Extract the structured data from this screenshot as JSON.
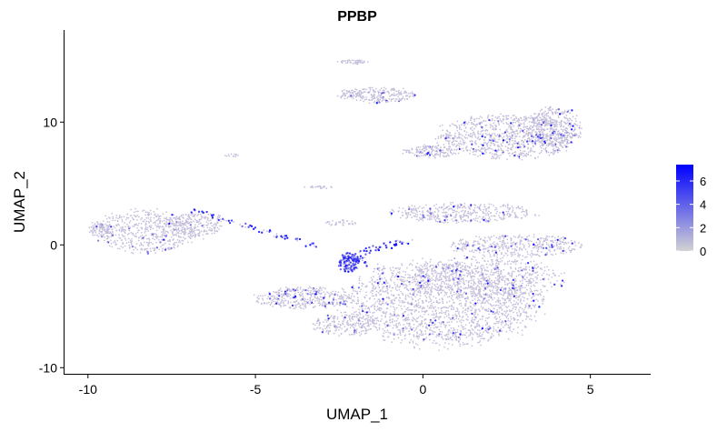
{
  "chart_data": {
    "type": "scatter",
    "title": "PPBP",
    "xlabel": "UMAP_1",
    "ylabel": "UMAP_2",
    "xlim": [
      -10.7,
      6.8
    ],
    "ylim": [
      -10.5,
      17.5
    ],
    "x_ticks": [
      -10,
      -5,
      0,
      5
    ],
    "y_ticks": [
      -10,
      0,
      10
    ],
    "x_tick_labels": [
      "-10",
      "-5",
      "0",
      "5"
    ],
    "y_tick_labels": [
      "-10",
      "0",
      "10"
    ],
    "grid": false,
    "legend_placement": "right",
    "color_scale": {
      "low_color": "#d3d3d3",
      "high_color": "#0000ff",
      "range": [
        0,
        7.4
      ],
      "ticks": [
        0,
        2,
        4,
        6
      ],
      "tick_labels": [
        "0",
        "2",
        "4",
        "6"
      ]
    },
    "point_color_base": "#c6bfdb",
    "clusters": [
      {
        "cx": 2.5,
        "cy": 8.8,
        "rx": 2.3,
        "ry": 2.0,
        "n": 900,
        "expr": 0.06
      },
      {
        "cx": 3.9,
        "cy": 9.6,
        "rx": 0.9,
        "ry": 1.8,
        "n": 350,
        "expr": 0.06
      },
      {
        "cx": 0.2,
        "cy": 7.6,
        "rx": 0.9,
        "ry": 0.6,
        "n": 160,
        "expr": 0.04
      },
      {
        "cx": -1.4,
        "cy": 12.2,
        "rx": 1.3,
        "ry": 0.7,
        "n": 260,
        "expr": 0.04
      },
      {
        "cx": -2.1,
        "cy": 14.9,
        "rx": 0.5,
        "ry": 0.2,
        "n": 45,
        "expr": 0.0
      },
      {
        "cx": -5.7,
        "cy": 7.3,
        "rx": 0.25,
        "ry": 0.12,
        "n": 12,
        "expr": 0.0
      },
      {
        "cx": -8.3,
        "cy": 1.1,
        "rx": 1.7,
        "ry": 2.0,
        "n": 520,
        "expr": 0.04
      },
      {
        "cx": -6.9,
        "cy": 1.6,
        "rx": 1.1,
        "ry": 1.2,
        "n": 260,
        "expr": 0.04
      },
      {
        "cx": -9.6,
        "cy": 1.3,
        "rx": 0.4,
        "ry": 0.8,
        "n": 70,
        "expr": 0.03
      },
      {
        "cx": 1.2,
        "cy": 2.6,
        "rx": 2.4,
        "ry": 0.9,
        "n": 420,
        "expr": 0.05
      },
      {
        "cx": 2.8,
        "cy": -0.1,
        "rx": 2.2,
        "ry": 1.0,
        "n": 420,
        "expr": 0.05
      },
      {
        "cx": 0.6,
        "cy": -4.8,
        "rx": 3.3,
        "ry": 3.8,
        "n": 1900,
        "expr": 0.05
      },
      {
        "cx": 1.8,
        "cy": -2.7,
        "rx": 2.6,
        "ry": 2.0,
        "n": 600,
        "expr": 0.05
      },
      {
        "cx": -3.6,
        "cy": -4.3,
        "rx": 1.6,
        "ry": 1.0,
        "n": 380,
        "expr": 0.08
      },
      {
        "cx": -2.3,
        "cy": -6.5,
        "rx": 1.1,
        "ry": 1.1,
        "n": 200,
        "expr": 0.05
      },
      {
        "cx": -2.2,
        "cy": -1.4,
        "rx": 0.35,
        "ry": 0.9,
        "n": 140,
        "expr": 0.75
      },
      {
        "cx": -2.5,
        "cy": 1.8,
        "rx": 0.55,
        "ry": 0.25,
        "n": 35,
        "expr": 0.0
      },
      {
        "cx": -3.1,
        "cy": 4.7,
        "rx": 0.5,
        "ry": 0.12,
        "n": 22,
        "expr": 0.0
      }
    ],
    "trails": [
      {
        "x0": -6.8,
        "y0": 2.8,
        "x1": -3.2,
        "y1": -0.1,
        "n": 60,
        "expr": 0.7
      },
      {
        "x0": -1.8,
        "y0": -0.6,
        "x1": -0.4,
        "y1": 0.4,
        "n": 40,
        "expr": 0.7
      },
      {
        "x0": -2.0,
        "y0": -0.9,
        "x1": -1.0,
        "y1": -2.5,
        "n": 25,
        "expr": 0.4
      }
    ]
  }
}
